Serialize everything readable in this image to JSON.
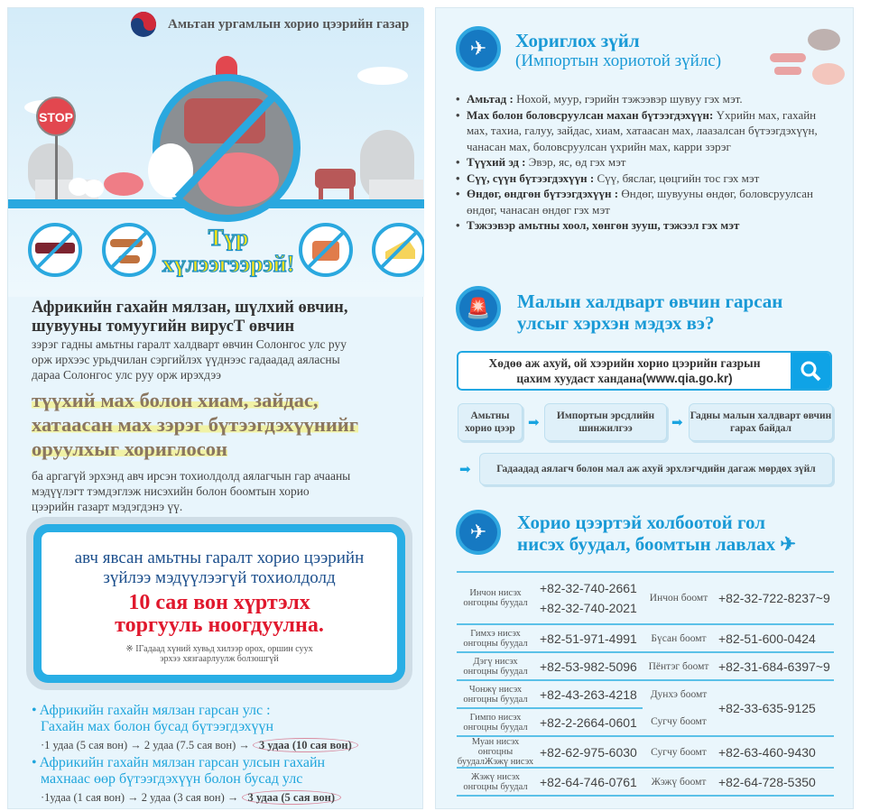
{
  "left": {
    "header": {
      "agency": "Амьтан ургамлын хорио цээрийн газар"
    },
    "illustration": {
      "stop_sign": "STOP",
      "banner": [
        "Түр",
        "хүлээгээрэй!"
      ]
    },
    "intro": {
      "heading": [
        "Африкийн гахайн мялзан, шүлхий өвчин,",
        "шувууны томуугийн вирусТ өвчин"
      ],
      "p1": [
        "зэрэг гадны амьтны гаралт халдварт өвчин Солонгос улс руу",
        "орж ирхээс урьдчилан сэргийлэх үүднээс гадаадад аяласны",
        "дараа Солонгос улс руу орж ирэхдээ"
      ],
      "highlight": [
        "түүхий мах болон хиам, зайдас,",
        "хатаасан мах зэрэг бүтээгдэхүүнийг",
        "оруулхыг хориглосон"
      ],
      "p2": [
        "ба аргагүй эрхэнд авч ирсэн тохиолдолд аялагчын гар ачааны",
        "мэдүүлэгт тэмдэглэж нисэхийн болон боомтын хорио",
        "цээрийн газарт мэдэгдэнэ үү."
      ]
    },
    "warning": {
      "line1": "авч явсан амьтны гаралт хорио цээрийн",
      "line2": "зүйлээ мэдүүлээгүй тохиолдолд",
      "fine1": "10 сая вон хүртэлх",
      "fine2": "торгууль ноогдуулна.",
      "note1": "※ IГадаад хүний хувьд хилээр орох, оршин суух",
      "note2": "эрхээ хязгаарлуулж болзошгүй"
    },
    "fines": [
      {
        "title": [
          "Африкийн гахайн мялзан гарсан улс :",
          "Гахайн мах болон бусад бүтээгдэхүүн"
        ],
        "sequence": "·1 удаа (5 сая вон) → 2 удаа (7.5 сая вон) →",
        "max": "3 удаа (10 сая вон)"
      },
      {
        "title": [
          "Африкийн гахайн мялзан гарсан улсын гахайн",
          "махнаас өөр бүтээгдэхүүн болон бусад улс"
        ],
        "sequence": "·1удаа (1 сая вон) → 2 удаа (3 сая вон) →",
        "max": "3 удаа (5 сая вон)"
      }
    ]
  },
  "right": {
    "section1": {
      "title": "Хориглох зүйл",
      "subtitle": "(Импортын хориотой зүйлс)",
      "items": [
        {
          "label": "Амьтад :",
          "text": " Нохой, муур, гэрийн тэжээвэр шувуу гэх мэт."
        },
        {
          "label": "Мах болон боловсруулсан махан бүтээгдэхүүн:",
          "text": " Үхрийн мах, гахайн мах, тахиа, галуу, зайдас, хиам, хатаасан мах, лаазалсан бүтээгдэхүүн, чанасан мах, боловсруулсан үхрийн мах, карри зэрэг"
        },
        {
          "label": "Түүхий эд :",
          "text": " Эвэр, яс, өд гэх мэт"
        },
        {
          "label": "Сүү, сүүн бүтээгдэхүүн :",
          "text": " Сүү, бяслаг, цөцгийн тос гэх мэт"
        },
        {
          "label": "Өндөг, өндгөн бүтээгдэхүүн :",
          "text": " Өндөг, шувууны өндөг, боловсруулсан өндөг, чанасан өндөг гэх мэт"
        },
        {
          "label": "Тэжээвэр амьтны хоол, хөнгөн зууш, тэжээл гэх мэт",
          "text": ""
        }
      ]
    },
    "section2": {
      "title": [
        "Малын халдварт өвчин гарсан",
        "улсыг хэрхэн мэдэх вэ?"
      ],
      "search": {
        "line1": "Хөдөө аж ахуй, ой хээрийн хорио цээрийн газрын",
        "line2": "цахим хуудаст хандана",
        "url": "(www.qia.go.kr)"
      },
      "flow": [
        "Амьтны хорио цээр",
        "Импортын эрсдлийн шинжилгээ",
        "Гадны малын халдварт өвчин гарах байдал"
      ],
      "flow_bottom": "Гадаадад аялагч болон мал аж ахуй эрхлэгчдийн дагаж мөрдөх зүйл"
    },
    "section3": {
      "title": [
        "Хорио цээртэй холбоотой гол",
        "нисэх буудал, боомтын лавлах"
      ],
      "rows": [
        {
          "airport": "Инчон нисэх онгоцны буудал",
          "airport_phone": [
            "+82-32-740-2661",
            "+82-32-740-2021"
          ],
          "port": "Инчон боомт",
          "port_phone": "+82-32-722-8237~9"
        },
        {
          "airport": "Гимхэ нисэх онгоцны буудал",
          "airport_phone": [
            "+82-51-971-4991"
          ],
          "port": "Бүсан боомт",
          "port_phone": "+82-51-600-0424"
        },
        {
          "airport": "Дэгү нисэх онгоцны буудал",
          "airport_phone": [
            "+82-53-982-5096"
          ],
          "port": "Пёнтэг боомт",
          "port_phone": "+82-31-684-6397~9"
        },
        {
          "airport": "Чонжү нисэх онгоцны буудал",
          "airport_phone": [
            "+82-43-263-4218"
          ],
          "port": "Дунхэ боомт",
          "port_phone": "+82-33-635-9125"
        },
        {
          "airport": "Гимпо нисэх онгоцны буудал",
          "airport_phone": [
            "+82-2-2664-0601"
          ],
          "port": "Сугчу боомт",
          "port_phone": ""
        },
        {
          "airport": "Муан нисэх онгоцны буудалЖэжү нисэх",
          "airport_phone": [
            "+82-62-975-6030"
          ],
          "port": "Сугчу боомт",
          "port_phone": "+82-63-460-9430"
        },
        {
          "airport": "Жэжү нисэх онгоцны буудал",
          "airport_phone": [
            "+82-64-746-0761"
          ],
          "port": "Жэжү боомт",
          "port_phone": "+82-64-728-5350"
        }
      ]
    }
  },
  "colors": {
    "accent": "#1a9ad6",
    "fine_red": "#e0182d",
    "banner_yellow": "#f7e21a",
    "navy": "#1c4f8c"
  }
}
